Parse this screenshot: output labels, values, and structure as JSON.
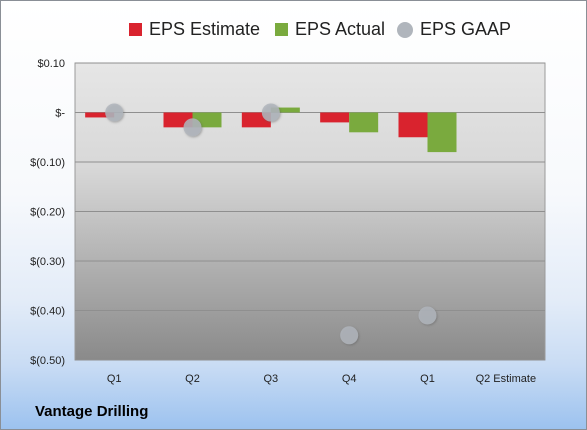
{
  "colors": {
    "estimate": "#d9232e",
    "actual": "#7aaa3e",
    "gaap": "#b0b5bc",
    "plot_top": "#e6e6e6",
    "plot_bottom": "#8a8a8a"
  },
  "company": "Vantage Drilling",
  "chart_data": {
    "type": "bar",
    "title": "",
    "xlabel": "",
    "ylabel": "",
    "categories": [
      "Q1",
      "Q2",
      "Q3",
      "Q4",
      "Q1",
      "Q2 Estimate"
    ],
    "ylim": [
      -0.5,
      0.1
    ],
    "y_ticks": [
      0.1,
      0.0,
      -0.1,
      -0.2,
      -0.3,
      -0.4,
      -0.5
    ],
    "y_tick_labels": [
      "$0.10",
      "$-",
      "$(0.10)",
      "$(0.20)",
      "$(0.30)",
      "$(0.40)",
      "$(0.50)"
    ],
    "grid": true,
    "legend_position": "top",
    "series": [
      {
        "name": "EPS Estimate",
        "kind": "bar",
        "color_key": "estimate",
        "values": [
          -0.01,
          -0.03,
          -0.03,
          -0.02,
          -0.05,
          null
        ]
      },
      {
        "name": "EPS Actual",
        "kind": "bar",
        "color_key": "actual",
        "values": [
          null,
          -0.03,
          0.01,
          -0.04,
          -0.08,
          null
        ]
      },
      {
        "name": "EPS GAAP",
        "kind": "dot",
        "color_key": "gaap",
        "values": [
          0.0,
          -0.03,
          0.0,
          -0.45,
          -0.41,
          null
        ]
      }
    ]
  }
}
